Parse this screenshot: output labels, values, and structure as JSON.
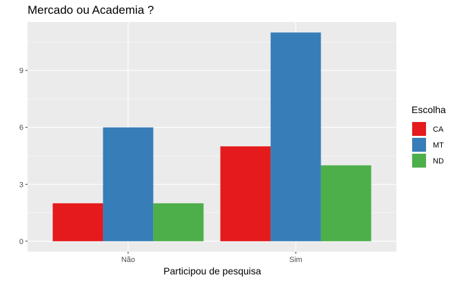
{
  "chart_data": {
    "type": "bar",
    "title": "Mercado ou Academia ?",
    "xlabel": "Participou de pesquisa",
    "ylabel": "",
    "categories": [
      "Não",
      "Sim"
    ],
    "series": [
      {
        "name": "CA",
        "color": "#E41A1C",
        "values": [
          2,
          5
        ]
      },
      {
        "name": "MT",
        "color": "#377EB8",
        "values": [
          6,
          11
        ]
      },
      {
        "name": "ND",
        "color": "#4DAF4A",
        "values": [
          2,
          4
        ]
      }
    ],
    "yticks": [
      0,
      3,
      6,
      9
    ],
    "ylim": [
      -0.55,
      11.55
    ],
    "grid": true,
    "legend": {
      "title": "Escolha",
      "position": "right"
    },
    "colors": {
      "panel": "#EBEBEB",
      "grid_major": "#FFFFFF"
    }
  }
}
